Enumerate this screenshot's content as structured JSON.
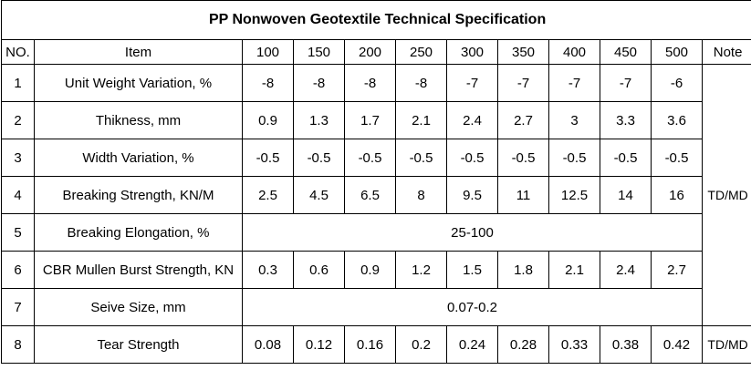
{
  "title": "PP Nonwoven Geotextile Technical Specification",
  "header": {
    "no": "NO.",
    "item": "Item",
    "grades": [
      "100",
      "150",
      "200",
      "250",
      "300",
      "350",
      "400",
      "450",
      "500"
    ],
    "note": "Note"
  },
  "rows": [
    {
      "no": "1",
      "item": "Unit Weight Variation, %",
      "values": [
        "-8",
        "-8",
        "-8",
        "-8",
        "-7",
        "-7",
        "-7",
        "-7",
        "-6"
      ]
    },
    {
      "no": "2",
      "item": "Thikness, mm",
      "values": [
        "0.9",
        "1.3",
        "1.7",
        "2.1",
        "2.4",
        "2.7",
        "3",
        "3.3",
        "3.6"
      ]
    },
    {
      "no": "3",
      "item": "Width Variation, %",
      "values": [
        "-0.5",
        "-0.5",
        "-0.5",
        "-0.5",
        "-0.5",
        "-0.5",
        "-0.5",
        "-0.5",
        "-0.5"
      ]
    },
    {
      "no": "4",
      "item": "Breaking Strength, KN/M",
      "values": [
        "2.5",
        "4.5",
        "6.5",
        "8",
        "9.5",
        "11",
        "12.5",
        "14",
        "16"
      ]
    },
    {
      "no": "5",
      "item": "Breaking Elongation, %",
      "merged": "25-100"
    },
    {
      "no": "6",
      "item": "CBR Mullen Burst Strength, KN",
      "values": [
        "0.3",
        "0.6",
        "0.9",
        "1.2",
        "1.5",
        "1.8",
        "2.1",
        "2.4",
        "2.7"
      ]
    },
    {
      "no": "7",
      "item": "Seive Size, mm",
      "merged": "0.07-0.2"
    },
    {
      "no": "8",
      "item": "Tear Strength",
      "values": [
        "0.08",
        "0.12",
        "0.16",
        "0.2",
        "0.24",
        "0.28",
        "0.33",
        "0.38",
        "0.42"
      ]
    }
  ],
  "notes": {
    "rows_1_to_7": "TD/MD",
    "row_8": "TD/MD"
  }
}
